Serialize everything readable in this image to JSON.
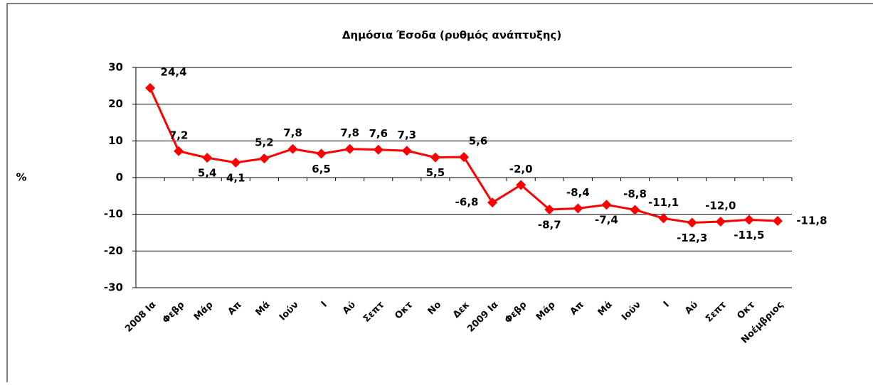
{
  "chart_data": {
    "type": "line",
    "title": "Δημόσια Έσοδα (ρυθμός ανάπτυξης)",
    "y_label": "%",
    "categories": [
      "2008 Ια",
      "Φεβρ",
      "Μάρ",
      "Απ",
      "Μά",
      "Ιούν",
      "Ι",
      "Αύ",
      "Σεπτ",
      "Οκτ",
      "Νο",
      "Δεκ",
      "2009 Ια",
      "Φεβρ",
      "Μάρ",
      "Απ",
      "Μά",
      "Ιούν",
      "Ι",
      "Αύ",
      "Σεπτ",
      "Οκτ",
      "Νοέμβριος"
    ],
    "series": [
      {
        "name": "Δημόσια Έσοδα",
        "color": "#ff0000",
        "values": [
          24.4,
          7.2,
          5.4,
          4.1,
          5.2,
          7.8,
          6.5,
          7.8,
          7.6,
          7.3,
          5.5,
          5.6,
          -6.8,
          -2.0,
          -8.7,
          -8.4,
          -7.4,
          -8.8,
          -11.1,
          -12.3,
          -12.0,
          -11.5,
          -11.8
        ],
        "value_labels": [
          "24,4",
          "7,2",
          "5,4",
          "4,1",
          "5,2",
          "7,8",
          "6,5",
          "7,8",
          "7,6",
          "7,3",
          "5,5",
          "5,6",
          "-6,8",
          "-2,0",
          "-8,7",
          "-8,4",
          "-7,4",
          "-8,8",
          "-11,1",
          "-12,3",
          "-12,0",
          "-11,5",
          "-11,8"
        ]
      }
    ],
    "ylim": [
      -30,
      30
    ],
    "yticks": [
      -30,
      -20,
      -10,
      0,
      10,
      20,
      30
    ],
    "grid": true
  }
}
